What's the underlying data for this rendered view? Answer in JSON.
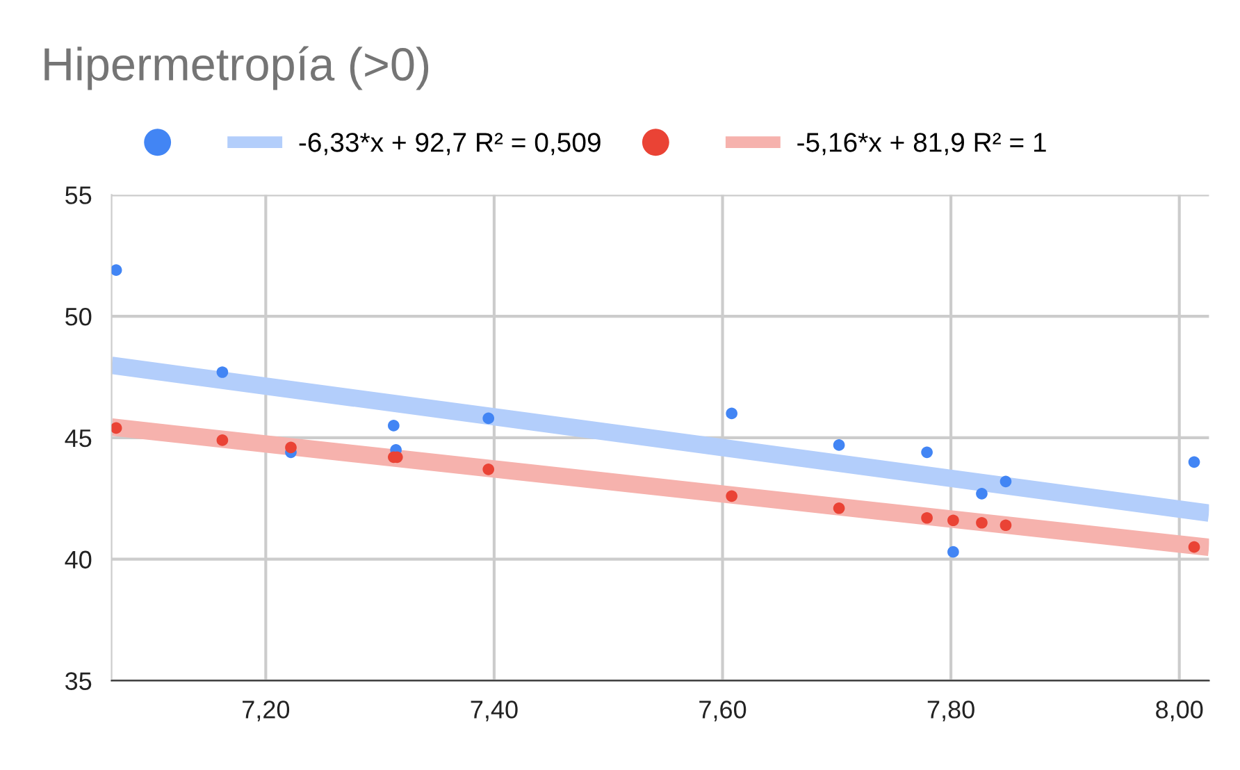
{
  "chart_data": {
    "type": "scatter",
    "title": "Hipermetropía (>0)",
    "legend": "top",
    "grid": true,
    "xlim": [
      7.065,
      8.026
    ],
    "ylim": [
      35,
      55
    ],
    "xticks": [
      {
        "value": 7.2,
        "label": "7,20"
      },
      {
        "value": 7.4,
        "label": "7,40"
      },
      {
        "value": 7.6,
        "label": "7,60"
      },
      {
        "value": 7.8,
        "label": "7,80"
      },
      {
        "value": 8.0,
        "label": "8,00"
      }
    ],
    "yticks": [
      35,
      40,
      45,
      50,
      55
    ],
    "series": [
      {
        "marker": "circle",
        "color": "#4285f4",
        "x": [
          7.069,
          7.162,
          7.222,
          7.312,
          7.314,
          7.395,
          7.608,
          7.702,
          7.779,
          7.827,
          7.802,
          7.848,
          8.013
        ],
        "values": [
          51.9,
          47.7,
          44.4,
          45.5,
          44.5,
          45.8,
          46.0,
          44.7,
          44.4,
          42.7,
          40.3,
          43.2,
          44.0
        ]
      },
      {
        "type": "line",
        "marker": "none",
        "name": "-6,33*x + 92,7 R² = 0,509",
        "color": "#b3cefb",
        "x": [
          7.065,
          8.026
        ],
        "values": [
          47.98,
          41.9
        ]
      },
      {
        "marker": "circle",
        "color": "#ea4335",
        "x": [
          7.069,
          7.162,
          7.222,
          7.312,
          7.315,
          7.395,
          7.608,
          7.702,
          7.779,
          7.802,
          7.827,
          7.848,
          8.013
        ],
        "values": [
          45.4,
          44.9,
          44.6,
          44.2,
          44.2,
          43.7,
          42.6,
          42.1,
          41.7,
          41.6,
          41.5,
          41.4,
          40.5
        ]
      },
      {
        "type": "line",
        "marker": "none",
        "name": "-5,16*x + 81,9 R² = 1",
        "color": "#f6b2ad",
        "x": [
          7.065,
          8.026
        ],
        "values": [
          45.44,
          40.49
        ]
      }
    ]
  }
}
